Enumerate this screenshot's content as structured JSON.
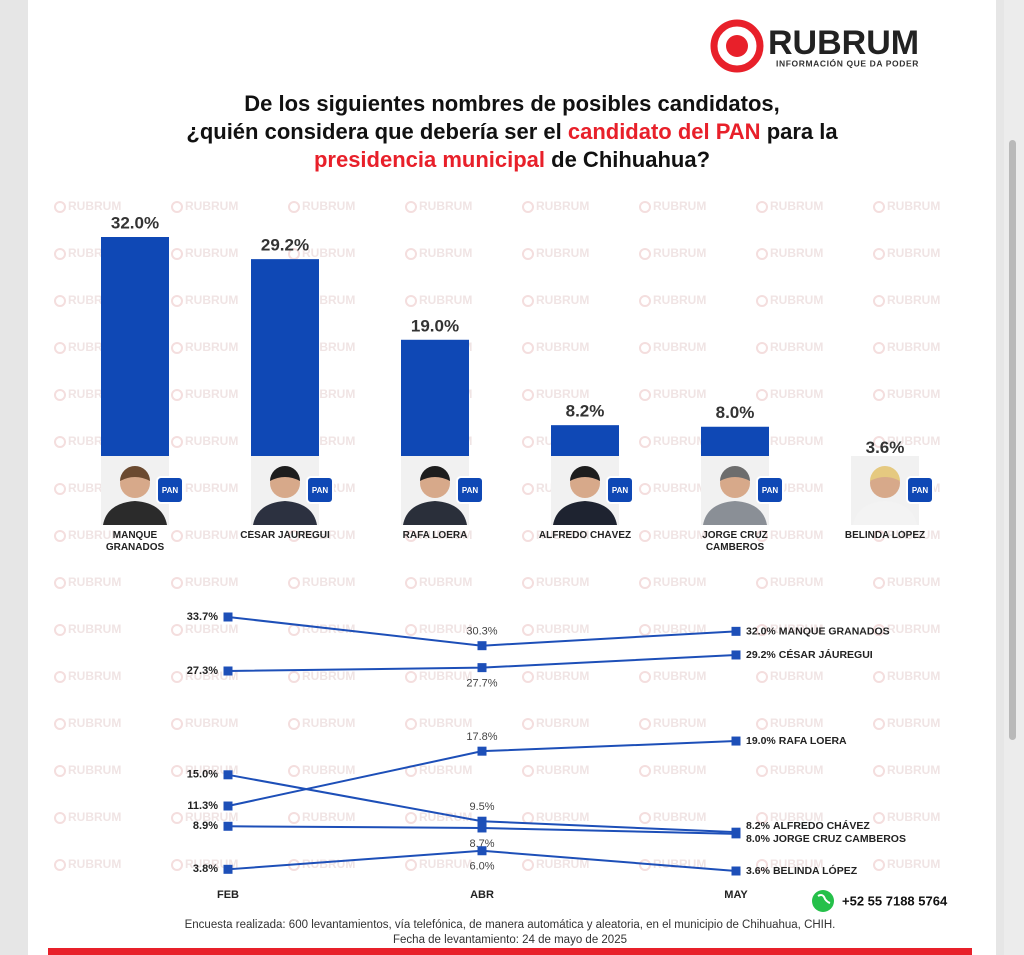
{
  "header": {
    "logo": "RUBRUM",
    "tagline": "INFORMACIÓN QUE DA PODER",
    "title_lines": [
      [
        {
          "text": "De los siguientes nombres de posibles candidatos,"
        }
      ],
      [
        {
          "text": "¿quién considera que debería ser el "
        },
        {
          "text": "candidato del PAN",
          "color": "#e8202a"
        },
        {
          "text": " para la"
        }
      ],
      [
        {
          "text": "presidencia municipal",
          "color": "#e8202a"
        },
        {
          "text": " de Chihuahua?"
        }
      ]
    ]
  },
  "watermark": "RUBRUM",
  "chart_data": [
    {
      "type": "bar",
      "badge": "PAN",
      "color": "#0f48b5",
      "categories": [
        "MANQUE GRANADOS",
        "CÉSAR JÁUREGUI",
        "RAFA LOERA",
        "ALFREDO CHÁVEZ",
        "JORGE CRUZ CAMBEROS",
        "BELINDA LÓPEZ"
      ],
      "values": [
        32.0,
        29.2,
        19.0,
        8.2,
        8.0,
        3.6
      ],
      "value_labels": [
        "32.0%",
        "29.2%",
        "19.0%",
        "8.2%",
        "8.0%",
        "3.6%"
      ]
    },
    {
      "type": "line",
      "x": [
        "FEB",
        "ABR",
        "MAY"
      ],
      "series": [
        {
          "name": "MANQUE GRANADOS",
          "color": "#1d4fb8",
          "values": [
            33.7,
            30.3,
            32.0
          ],
          "value_labels": [
            "33.7%",
            "30.3%",
            "32.0%"
          ]
        },
        {
          "name": "CÉSAR JÁUREGUI",
          "color": "#1d4fb8",
          "values": [
            27.3,
            27.7,
            29.2
          ],
          "value_labels": [
            "27.3%",
            "27.7%",
            "29.2%"
          ]
        },
        {
          "name": "RAFA LOERA",
          "color": "#1d4fb8",
          "values": [
            11.3,
            17.8,
            19.0
          ],
          "value_labels": [
            "11.3%",
            "17.8%",
            "19.0%"
          ]
        },
        {
          "name": "ALFREDO CHÁVEZ",
          "color": "#1d4fb8",
          "values": [
            15.0,
            9.5,
            8.2
          ],
          "value_labels": [
            "15.0%",
            "9.5%",
            "8.2%"
          ]
        },
        {
          "name": "JORGE CRUZ CAMBEROS",
          "color": "#1d4fb8",
          "values": [
            8.9,
            8.7,
            8.0
          ],
          "value_labels": [
            "8.9%",
            "8.7%",
            "8.0%"
          ]
        },
        {
          "name": "BELINDA LÓPEZ",
          "color": "#1d4fb8",
          "values": [
            3.8,
            6.0,
            3.6
          ],
          "value_labels": [
            "3.8%",
            "6.0%",
            "3.6%"
          ]
        }
      ]
    }
  ],
  "footer": {
    "note": [
      "Encuesta realizada: 600 levantamientos, vía telefónica, de manera automática y aleatoria, en el municipio de Chihuahua, CHIH.",
      "Fecha de levantamiento: 24 de mayo de 2025"
    ],
    "phone": "+52 55 7188 5764"
  }
}
